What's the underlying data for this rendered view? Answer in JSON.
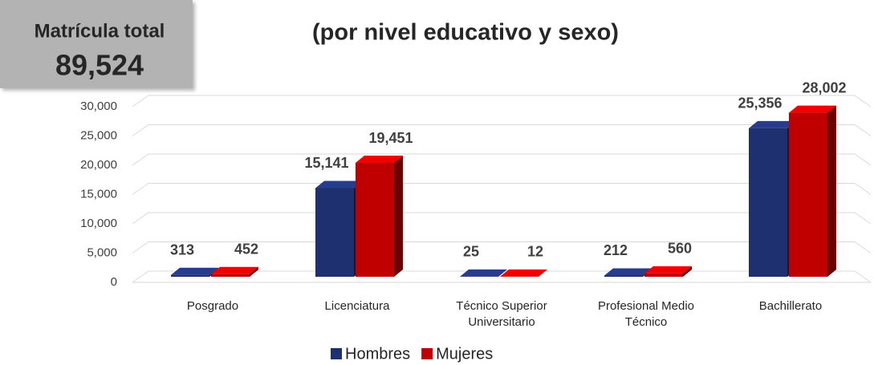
{
  "chart_data": {
    "type": "bar3d",
    "title": "(por nivel educativo y sexo)",
    "total_title": "Matrícula total",
    "total": {
      "value": 89524,
      "label": "89,524"
    },
    "categories": [
      "Posgrado",
      "Licenciatura",
      "Técnico Superior Universitario",
      "Profesional Medio Técnico",
      "Bachillerato"
    ],
    "series": [
      {
        "name": "Hombres",
        "color": "#1f3070",
        "values": [
          313,
          15141,
          25,
          212,
          25356
        ],
        "value_labels": [
          "313",
          "15,141",
          "25",
          "212",
          "25,356"
        ]
      },
      {
        "name": "Mujeres",
        "color": "#c00000",
        "values": [
          452,
          19451,
          12,
          560,
          28002
        ],
        "value_labels": [
          "452",
          "19,451",
          "12",
          "560",
          "28,002"
        ]
      }
    ],
    "ylim": [
      0,
      30000
    ],
    "yticks": [
      0,
      {
        "value": 5000,
        "label": "5,000"
      },
      {
        "value": 10000,
        "label": "10,000"
      },
      {
        "value": 15000,
        "label": "15,000"
      },
      {
        "value": 20000,
        "label": "20,000"
      },
      {
        "value": 25000,
        "label": "25,000"
      },
      {
        "value": 30000,
        "label": "30,000"
      }
    ],
    "grid": true
  }
}
